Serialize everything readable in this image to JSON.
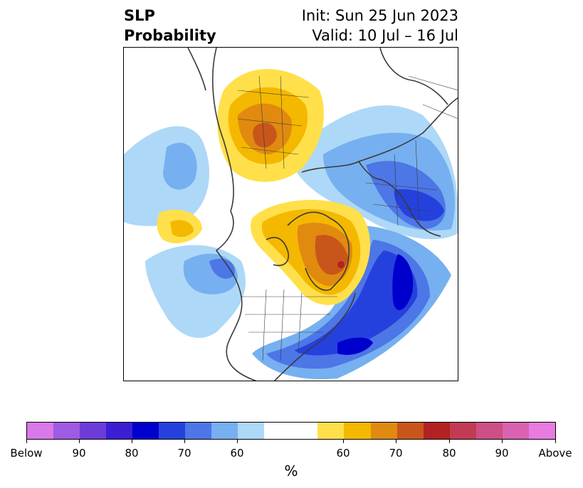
{
  "title": {
    "left_line1": "SLP",
    "left_line2": "Probability",
    "right_line1": "Init: Sun 25 Jun 2023",
    "right_line2": "Valid: 10 Jul – 16 Jul"
  },
  "colorbar": {
    "colors": [
      "#d978e8",
      "#a05ae3",
      "#6c3bd9",
      "#3a1fd3",
      "#0000cd",
      "#2541dd",
      "#4d76e6",
      "#76b0f0",
      "#aed8f7",
      "#ffffff",
      "#ffe04a",
      "#f4b800",
      "#e08a10",
      "#c8561a",
      "#b22222",
      "#c23b55",
      "#cd4f85",
      "#d862b0",
      "#e87be0"
    ],
    "ticks": [
      "Below",
      "90",
      "80",
      "70",
      "60",
      "60",
      "70",
      "80",
      "90",
      "Above"
    ],
    "unit": "%"
  }
}
